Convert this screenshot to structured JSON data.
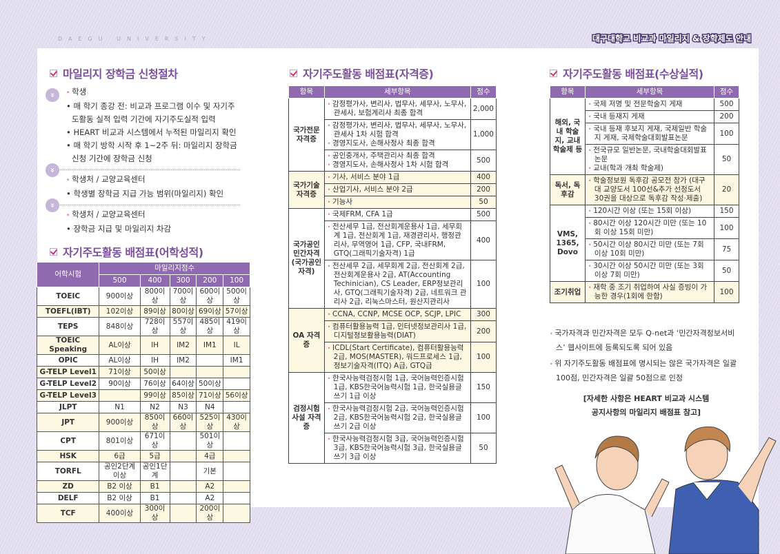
{
  "header": {
    "brand": "DAEGU UNIVERSITY",
    "headline": "대구대학교 비교과 마일리지 & 장학제도 안내"
  },
  "procedure": {
    "title": "마일리지 장학금 신청절차",
    "steps": [
      {
        "who": "학생",
        "items": [
          "매 학기 종강 전: 비교과 프로그램 이수 및 자기주도활동 실적 입력 기간에 자기주도실적 입력",
          "HEART 비교과 시스템에서 누적된 마일리지 확인",
          "매 학기 방학 시작 후 1~2주 뒤: 마일리지 장학금 신청 기간에 장학금 신청"
        ]
      },
      {
        "who": "학생처 / 교양교육센터",
        "items": [
          "학생별 장학금 지급 가능 범위(마일리지) 확인"
        ]
      },
      {
        "who": "학생처 / 교양교육센터",
        "items": [
          "장학금 지급 및 마일리지 차감"
        ]
      }
    ]
  },
  "language": {
    "title": "자기주도활동 배점표(어학성적)",
    "col_test": "어학시험",
    "col_group": "마일리지점수",
    "scores": [
      "500",
      "400",
      "300",
      "200",
      "100"
    ],
    "rows": [
      [
        "TOEIC",
        "900이상",
        "800이상",
        "700이상",
        "600이상",
        "500이상"
      ],
      [
        "TOEFL(IBT)",
        "102이상",
        "89이상",
        "80이상",
        "69이상",
        "57이상"
      ],
      [
        "TEPS",
        "848이상",
        "728이상",
        "557이상",
        "485이상",
        "419이상"
      ],
      [
        "TOEIC Speaking",
        "AL이상",
        "IH",
        "IM2",
        "IM1",
        "IL"
      ],
      [
        "OPIC",
        "AL이상",
        "IH",
        "IM2",
        "",
        "IM1"
      ],
      [
        "G-TELP Level1",
        "71이상",
        "50이상",
        "",
        "",
        ""
      ],
      [
        "G-TELP Level2",
        "90이상",
        "76이상",
        "64이상",
        "50이상",
        ""
      ],
      [
        "G-TELP Level3",
        "",
        "99이상",
        "85이상",
        "71이상",
        "56이상"
      ],
      [
        "JLPT",
        "N1",
        "N2",
        "N3",
        "N4",
        ""
      ],
      [
        "JPT",
        "900이상",
        "850이상",
        "660이상",
        "525이상",
        "430이상"
      ],
      [
        "CPT",
        "801이상",
        "671이상",
        "",
        "501이상",
        ""
      ],
      [
        "HSK",
        "6급",
        "5급",
        "",
        "4급",
        ""
      ],
      [
        "TORFL",
        "공인2단계 이상",
        "공인1단계",
        "",
        "기본",
        ""
      ],
      [
        "ZD",
        "B2 이상",
        "B1",
        "",
        "A2",
        ""
      ],
      [
        "DELF",
        "B2 이상",
        "B1",
        "",
        "A2",
        ""
      ],
      [
        "TCF",
        "400이상",
        "300이상",
        "",
        "200이상",
        ""
      ]
    ]
  },
  "certs": {
    "title": "자기주도활동 배점표(자격증)",
    "cols": [
      "항목",
      "세부항목",
      "점수"
    ],
    "groups": [
      {
        "name": "국가전문 자격증",
        "rows": [
          {
            "items": [
              "감정평가사, 변리사, 법무사, 세무사, 노무사, 관세사, 보험계리사 최종 합격"
            ],
            "score": "2,000"
          },
          {
            "items": [
              "감정평가사, 변리사, 법무사, 세무사, 노무사, 관세사 1차 시험 합격",
              "경영지도사, 손해사정사 최종 합격"
            ],
            "score": "1,000"
          },
          {
            "items": [
              "공인중개사, 주택관리사 최종 합격",
              "경영지도사, 손해사정사 1차 시험 합격"
            ],
            "score": "500"
          }
        ]
      },
      {
        "name": "국가기술 자격증",
        "rows": [
          {
            "items": [
              "기사, 서비스 분야 1급"
            ],
            "score": "400"
          },
          {
            "items": [
              "산업기사, 서비스 분야 2급"
            ],
            "score": "200"
          },
          {
            "items": [
              "기능사"
            ],
            "score": "50"
          }
        ]
      },
      {
        "name": "국가공인 민간자격 (국가공인 자격)",
        "rows": [
          {
            "items": [
              "국제FRM, CFA 1급"
            ],
            "score": "500"
          },
          {
            "items": [
              "전산세무 1급, 전산회계운용사 1급, 세무회계 1급, 전산회계 1급, 재경관리사, 행정관리사, 무역영어 1급, CFP, 국내FRM, GTQ(그래픽기술자격) 1급"
            ],
            "score": "400"
          },
          {
            "items": [
              "전산세무 2급, 세무회계 2급, 전산회계 2급, 전산회계운용사 2급, AT(Accounting Techinician), CS Leader, ERP정보관리사, GTQ(그래픽기술자격) 2급, 네트워크 관리사 2급, 리눅스마스터, 원산지관리사"
            ],
            "score": "100"
          }
        ]
      },
      {
        "name": "OA 자격증",
        "rows": [
          {
            "items": [
              "CCNA, CCNP, MCSE OCP, SCJP, LPIC"
            ],
            "score": "300"
          },
          {
            "items": [
              "컴퓨터활용능력 1급, 인터넷정보관리사 1급, 디지털정보활용능력(DIAT)"
            ],
            "score": "200"
          },
          {
            "items": [
              "ICDL(Start Certificate), 컴퓨터활용능력 2급, MOS(MASTER), 워드프로세스 1급, 정보기술자격(ITQ) A급, GTQ급"
            ],
            "score": "100"
          }
        ]
      },
      {
        "name": "검정시험 사설 자격증",
        "rows": [
          {
            "items": [
              "한국사능력검정시험 1급, 국어능력인증시험 1급, KBS한국어능력시험 1급, 한국실용글쓰기 1급 이상"
            ],
            "score": "150"
          },
          {
            "items": [
              "한국사능력검정시험 2급, 국어능력인증시험 2급, KBS한국어능력시험 2급, 한국실용글쓰기 2급 이상"
            ],
            "score": "100"
          },
          {
            "items": [
              "한국사능력검정시험 3급, 국어능력인증시험 3급, KBS한국어능력시험 3급, 한국실용글쓰기 3급 이상"
            ],
            "score": "50"
          }
        ]
      }
    ]
  },
  "awards": {
    "title": "자기주도활동 배점표(수상실적)",
    "cols": [
      "항목",
      "세부항목",
      "점수"
    ],
    "groups": [
      {
        "name": "해외, 국내 학술지, 교내 학술제 등",
        "rows": [
          {
            "items": [
              "국제 저명 및 전문학술지 게재"
            ],
            "score": "500"
          },
          {
            "items": [
              "국내 등재지 게재"
            ],
            "score": "200"
          },
          {
            "items": [
              "국내 등재 후보지 게재, 국제일반 학술지 게재, 국제학술대회발표논문"
            ],
            "score": "100"
          },
          {
            "items": [
              "전국규모 일반논문, 국내학술대회발표논문",
              "교내(학과 개최 학술제)"
            ],
            "score": "50"
          }
        ]
      },
      {
        "name": "독서, 독후감",
        "rows": [
          {
            "items": [
              "학술정보원 독후감 공모전 참가 (대구대 교양도서 100선&추가 선정도서 30권을 대상으로 독후감 작성·제출)"
            ],
            "score": "20"
          }
        ]
      },
      {
        "name": "VMS, 1365, Dovo",
        "rows": [
          {
            "items": [
              "120시간 이상 (또는 15회 이상)"
            ],
            "score": "150"
          },
          {
            "items": [
              "80시간 이상 120시간 미만 (또는 10회 이상 15회 미만)"
            ],
            "score": "100"
          },
          {
            "items": [
              "50시간 이상 80시간 미만 (또는 7회 이상 10회 미만)"
            ],
            "score": "75"
          },
          {
            "items": [
              "30시간 이상 50시간 미만 (또는 3회 이상 7회 미만)"
            ],
            "score": "50"
          }
        ]
      },
      {
        "name": "조기취업",
        "rows": [
          {
            "items": [
              "재학 중 조기 취업하여 사실 증빙이 가능한 경우(1회에 한함)"
            ],
            "score": "100"
          }
        ]
      }
    ]
  },
  "notes": {
    "items": [
      "국가자격과 민간자격은 모두 Q-net과 ‘민간자격정보서비스’ 웹사이트에 등록되도록 되어 있음",
      "위 자기주도활동 배점표에 명시되는 않은 국가자격은 일괄 100점, 민간자격은 일괄 50점으로 인정"
    ],
    "ref_line1": "[자세한 사항은 HEART 비교과 시스템",
    "ref_line2": "공지사항의 마일리지 배점표 참고]"
  },
  "colors": {
    "header_purple": "#8f6ab0",
    "title_purple": "#7b4f9c",
    "cream": "#fdf8e2",
    "bullet_pink": "#e07a9a"
  }
}
